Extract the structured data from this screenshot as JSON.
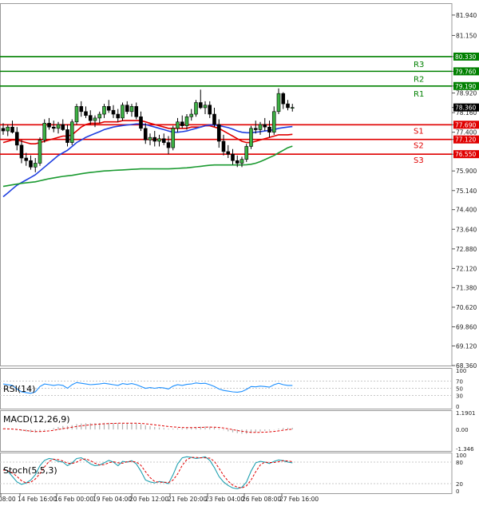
{
  "chart_data": {
    "type": "candlestick",
    "price_axis": {
      "ticks": [
        "81.940",
        "81.150",
        "80.330",
        "79.760",
        "79.190",
        "78.920",
        "78.360",
        "78.160",
        "77.690",
        "77.400",
        "77.120",
        "76.550",
        "75.900",
        "75.140",
        "74.400",
        "73.640",
        "72.880",
        "72.120",
        "71.380",
        "70.620",
        "69.860",
        "69.120",
        "68.360"
      ],
      "range": [
        68.36,
        82.4
      ]
    },
    "time_axis": {
      "labels": [
        "08:00",
        "14 Feb 16:00",
        "16 Feb 00:00",
        "19 Feb 04:00",
        "20 Feb 12:00",
        "21 Feb 20:00",
        "23 Feb 04:00",
        "26 Feb 08:00",
        "27 Feb 16:00"
      ]
    },
    "last_price": "78.360",
    "levels": [
      {
        "name": "R3",
        "label": "R3",
        "value": 80.33,
        "tag": "80.330",
        "color": "#008000"
      },
      {
        "name": "R2",
        "label": "R2",
        "value": 79.76,
        "tag": "79.760",
        "color": "#008000"
      },
      {
        "name": "R1",
        "label": "R1",
        "value": 79.19,
        "tag": "79.190",
        "color": "#008000"
      },
      {
        "name": "S1",
        "label": "S1",
        "value": 77.69,
        "tag": "77.690",
        "color": "#e00000"
      },
      {
        "name": "S2",
        "label": "S2",
        "value": 77.12,
        "tag": "77.120",
        "color": "#e00000"
      },
      {
        "name": "S3",
        "label": "S3",
        "value": 76.55,
        "tag": "76.550",
        "color": "#e00000"
      }
    ],
    "candles": [
      {
        "o": 77.55,
        "h": 77.75,
        "l": 77.3,
        "c": 77.45
      },
      {
        "o": 77.45,
        "h": 77.7,
        "l": 77.25,
        "c": 77.6
      },
      {
        "o": 77.6,
        "h": 77.85,
        "l": 77.35,
        "c": 77.4
      },
      {
        "o": 77.4,
        "h": 77.6,
        "l": 76.7,
        "c": 76.9
      },
      {
        "o": 76.9,
        "h": 77.1,
        "l": 76.2,
        "c": 76.4
      },
      {
        "o": 76.4,
        "h": 76.6,
        "l": 76.1,
        "c": 76.3
      },
      {
        "o": 76.3,
        "h": 76.5,
        "l": 75.95,
        "c": 76.05
      },
      {
        "o": 76.05,
        "h": 76.4,
        "l": 75.85,
        "c": 76.2
      },
      {
        "o": 76.2,
        "h": 77.2,
        "l": 76.1,
        "c": 77.1
      },
      {
        "o": 77.1,
        "h": 77.9,
        "l": 77.0,
        "c": 77.75
      },
      {
        "o": 77.75,
        "h": 77.95,
        "l": 77.5,
        "c": 77.6
      },
      {
        "o": 77.6,
        "h": 77.85,
        "l": 77.4,
        "c": 77.55
      },
      {
        "o": 77.55,
        "h": 77.8,
        "l": 77.35,
        "c": 77.7
      },
      {
        "o": 77.7,
        "h": 77.9,
        "l": 77.45,
        "c": 77.5
      },
      {
        "o": 77.5,
        "h": 77.7,
        "l": 76.85,
        "c": 77.0
      },
      {
        "o": 77.0,
        "h": 77.9,
        "l": 76.9,
        "c": 77.8
      },
      {
        "o": 77.8,
        "h": 78.5,
        "l": 77.7,
        "c": 78.4
      },
      {
        "o": 78.4,
        "h": 78.6,
        "l": 78.0,
        "c": 78.2
      },
      {
        "o": 78.2,
        "h": 78.4,
        "l": 77.95,
        "c": 78.05
      },
      {
        "o": 78.05,
        "h": 78.25,
        "l": 77.7,
        "c": 77.85
      },
      {
        "o": 77.85,
        "h": 78.05,
        "l": 77.6,
        "c": 77.95
      },
      {
        "o": 77.95,
        "h": 78.2,
        "l": 77.75,
        "c": 78.1
      },
      {
        "o": 78.1,
        "h": 78.5,
        "l": 77.95,
        "c": 78.4
      },
      {
        "o": 78.4,
        "h": 78.65,
        "l": 78.15,
        "c": 78.25
      },
      {
        "o": 78.25,
        "h": 78.45,
        "l": 77.95,
        "c": 78.1
      },
      {
        "o": 78.1,
        "h": 78.3,
        "l": 77.8,
        "c": 77.95
      },
      {
        "o": 77.95,
        "h": 78.55,
        "l": 77.85,
        "c": 78.45
      },
      {
        "o": 78.45,
        "h": 78.6,
        "l": 78.1,
        "c": 78.2
      },
      {
        "o": 78.2,
        "h": 78.5,
        "l": 78.0,
        "c": 78.4
      },
      {
        "o": 78.4,
        "h": 78.55,
        "l": 77.9,
        "c": 78.0
      },
      {
        "o": 78.0,
        "h": 78.2,
        "l": 77.45,
        "c": 77.55
      },
      {
        "o": 77.55,
        "h": 77.75,
        "l": 76.95,
        "c": 77.1
      },
      {
        "o": 77.1,
        "h": 77.35,
        "l": 76.9,
        "c": 77.2
      },
      {
        "o": 77.2,
        "h": 77.45,
        "l": 76.85,
        "c": 77.05
      },
      {
        "o": 77.05,
        "h": 77.3,
        "l": 76.85,
        "c": 77.15
      },
      {
        "o": 77.15,
        "h": 77.35,
        "l": 76.9,
        "c": 77.0
      },
      {
        "o": 77.0,
        "h": 77.25,
        "l": 76.55,
        "c": 76.8
      },
      {
        "o": 76.8,
        "h": 77.65,
        "l": 76.7,
        "c": 77.55
      },
      {
        "o": 77.55,
        "h": 77.95,
        "l": 77.4,
        "c": 77.8
      },
      {
        "o": 77.8,
        "h": 78.05,
        "l": 77.55,
        "c": 77.65
      },
      {
        "o": 77.65,
        "h": 78.1,
        "l": 77.5,
        "c": 78.0
      },
      {
        "o": 78.0,
        "h": 78.3,
        "l": 77.85,
        "c": 78.1
      },
      {
        "o": 78.1,
        "h": 78.65,
        "l": 78.0,
        "c": 78.55
      },
      {
        "o": 78.55,
        "h": 79.05,
        "l": 78.3,
        "c": 78.35
      },
      {
        "o": 78.35,
        "h": 78.6,
        "l": 78.1,
        "c": 78.45
      },
      {
        "o": 78.45,
        "h": 78.6,
        "l": 77.95,
        "c": 78.1
      },
      {
        "o": 78.1,
        "h": 78.35,
        "l": 77.6,
        "c": 77.7
      },
      {
        "o": 77.7,
        "h": 77.9,
        "l": 76.8,
        "c": 77.05
      },
      {
        "o": 77.05,
        "h": 77.3,
        "l": 76.5,
        "c": 76.65
      },
      {
        "o": 76.65,
        "h": 76.9,
        "l": 76.4,
        "c": 76.55
      },
      {
        "o": 76.55,
        "h": 76.75,
        "l": 76.15,
        "c": 76.3
      },
      {
        "o": 76.3,
        "h": 76.5,
        "l": 76.05,
        "c": 76.2
      },
      {
        "o": 76.2,
        "h": 76.45,
        "l": 76.05,
        "c": 76.35
      },
      {
        "o": 76.35,
        "h": 76.95,
        "l": 76.25,
        "c": 76.85
      },
      {
        "o": 76.85,
        "h": 77.65,
        "l": 76.75,
        "c": 77.55
      },
      {
        "o": 77.55,
        "h": 77.85,
        "l": 77.35,
        "c": 77.5
      },
      {
        "o": 77.5,
        "h": 77.8,
        "l": 77.3,
        "c": 77.7
      },
      {
        "o": 77.7,
        "h": 77.95,
        "l": 77.45,
        "c": 77.6
      },
      {
        "o": 77.6,
        "h": 77.85,
        "l": 77.2,
        "c": 77.4
      },
      {
        "o": 77.4,
        "h": 78.4,
        "l": 77.3,
        "c": 78.2
      },
      {
        "o": 78.2,
        "h": 79.1,
        "l": 78.1,
        "c": 78.9
      },
      {
        "o": 78.9,
        "h": 78.95,
        "l": 78.3,
        "c": 78.5
      },
      {
        "o": 78.5,
        "h": 78.65,
        "l": 78.25,
        "c": 78.35
      },
      {
        "o": 78.35,
        "h": 78.5,
        "l": 78.2,
        "c": 78.36
      }
    ],
    "moving_averages": [
      {
        "color": "#e00000",
        "values": [
          77.0,
          77.05,
          77.1,
          77.1,
          77.05,
          77.0,
          76.95,
          76.95,
          77.0,
          77.05,
          77.1,
          77.15,
          77.2,
          77.25,
          77.25,
          77.3,
          77.45,
          77.6,
          77.7,
          77.75,
          77.75,
          77.75,
          77.8,
          77.8,
          77.8,
          77.8,
          77.85,
          77.85,
          77.85,
          77.85,
          77.85,
          77.8,
          77.75,
          77.7,
          77.65,
          77.6,
          77.55,
          77.55,
          77.55,
          77.55,
          77.55,
          77.6,
          77.6,
          77.6,
          77.65,
          77.65,
          77.6,
          77.55,
          77.45,
          77.35,
          77.25,
          77.15,
          77.05,
          77.0,
          77.0,
          77.05,
          77.1,
          77.15,
          77.2,
          77.25,
          77.3,
          77.3,
          77.3,
          77.32
        ]
      },
      {
        "color": "#2040e0",
        "values": [
          74.9,
          75.05,
          75.2,
          75.35,
          75.45,
          75.55,
          75.65,
          75.75,
          75.9,
          76.05,
          76.2,
          76.35,
          76.5,
          76.6,
          76.7,
          76.85,
          77.0,
          77.1,
          77.2,
          77.28,
          77.35,
          77.42,
          77.5,
          77.55,
          77.6,
          77.63,
          77.66,
          77.68,
          77.7,
          77.72,
          77.72,
          77.7,
          77.65,
          77.6,
          77.55,
          77.5,
          77.45,
          77.4,
          77.4,
          77.42,
          77.45,
          77.5,
          77.55,
          77.6,
          77.65,
          77.68,
          77.68,
          77.66,
          77.62,
          77.58,
          77.52,
          77.45,
          77.4,
          77.38,
          77.38,
          77.4,
          77.42,
          77.45,
          77.47,
          77.5,
          77.55,
          77.58,
          77.6,
          77.62
        ]
      },
      {
        "color": "#1a9a30",
        "values": [
          75.3,
          75.33,
          75.36,
          75.39,
          75.42,
          75.44,
          75.46,
          75.48,
          75.52,
          75.56,
          75.6,
          75.63,
          75.66,
          75.69,
          75.71,
          75.73,
          75.76,
          75.79,
          75.82,
          75.84,
          75.86,
          75.88,
          75.9,
          75.91,
          75.92,
          75.93,
          75.94,
          75.95,
          75.96,
          75.97,
          75.98,
          75.98,
          75.98,
          75.98,
          75.98,
          75.98,
          75.98,
          75.99,
          76.0,
          76.01,
          76.02,
          76.04,
          76.06,
          76.08,
          76.1,
          76.12,
          76.13,
          76.13,
          76.13,
          76.13,
          76.13,
          76.13,
          76.13,
          76.14,
          76.16,
          76.2,
          76.26,
          76.34,
          76.42,
          76.5,
          76.6,
          76.7,
          76.8,
          76.86
        ]
      }
    ],
    "indicators": {
      "rsi": {
        "label": "RSI(14)",
        "ticks": [
          "100",
          "70",
          "50",
          "30",
          "0"
        ],
        "values": [
          62,
          60,
          58,
          48,
          40,
          38,
          36,
          40,
          55,
          62,
          60,
          58,
          60,
          58,
          50,
          60,
          66,
          64,
          62,
          60,
          61,
          62,
          64,
          62,
          60,
          58,
          63,
          61,
          63,
          60,
          55,
          50,
          52,
          50,
          52,
          51,
          48,
          56,
          60,
          58,
          61,
          62,
          65,
          63,
          64,
          60,
          55,
          48,
          44,
          42,
          40,
          39,
          41,
          47,
          55,
          54,
          56,
          55,
          53,
          60,
          64,
          60,
          58,
          58
        ]
      },
      "macd": {
        "label": "MACD(12,26,9)",
        "ticks": [
          "1.1901",
          "0.00",
          "-1.346"
        ],
        "hist": [
          0.05,
          0.02,
          0.0,
          -0.05,
          -0.1,
          -0.15,
          -0.2,
          -0.22,
          -0.15,
          -0.08,
          0.02,
          0.1,
          0.18,
          0.25,
          0.25,
          0.3,
          0.38,
          0.42,
          0.44,
          0.44,
          0.44,
          0.45,
          0.47,
          0.47,
          0.46,
          0.45,
          0.46,
          0.45,
          0.45,
          0.43,
          0.38,
          0.3,
          0.24,
          0.18,
          0.14,
          0.1,
          0.05,
          0.06,
          0.08,
          0.09,
          0.11,
          0.13,
          0.18,
          0.2,
          0.22,
          0.2,
          0.14,
          0.05,
          -0.05,
          -0.13,
          -0.2,
          -0.26,
          -0.3,
          -0.3,
          -0.25,
          -0.2,
          -0.15,
          -0.1,
          -0.08,
          -0.02,
          0.06,
          0.1,
          0.12,
          0.12
        ],
        "signal": [
          0.05,
          0.04,
          0.03,
          0.0,
          -0.04,
          -0.08,
          -0.12,
          -0.15,
          -0.15,
          -0.13,
          -0.1,
          -0.06,
          0.0,
          0.06,
          0.11,
          0.16,
          0.21,
          0.26,
          0.3,
          0.33,
          0.36,
          0.38,
          0.4,
          0.42,
          0.43,
          0.44,
          0.44,
          0.44,
          0.44,
          0.44,
          0.43,
          0.4,
          0.37,
          0.33,
          0.29,
          0.25,
          0.21,
          0.18,
          0.16,
          0.14,
          0.13,
          0.13,
          0.14,
          0.15,
          0.16,
          0.17,
          0.16,
          0.14,
          0.1,
          0.05,
          -0.01,
          -0.07,
          -0.13,
          -0.17,
          -0.2,
          -0.21,
          -0.2,
          -0.19,
          -0.17,
          -0.14,
          -0.1,
          -0.05,
          -0.01,
          0.02
        ]
      },
      "stoch": {
        "label": "Stoch(5,5,3)",
        "ticks": [
          "100",
          "80",
          "20",
          "0"
        ],
        "k": [
          60,
          55,
          40,
          25,
          18,
          22,
          30,
          45,
          70,
          85,
          90,
          88,
          82,
          80,
          70,
          78,
          90,
          92,
          85,
          75,
          70,
          72,
          78,
          85,
          80,
          70,
          82,
          80,
          84,
          75,
          55,
          30,
          25,
          22,
          26,
          24,
          20,
          45,
          75,
          92,
          95,
          93,
          90,
          92,
          95,
          85,
          65,
          40,
          25,
          15,
          8,
          6,
          10,
          25,
          55,
          78,
          82,
          80,
          76,
          82,
          86,
          84,
          80,
          78
        ],
        "d": [
          58,
          56,
          50,
          40,
          28,
          22,
          24,
          33,
          48,
          67,
          82,
          88,
          87,
          83,
          77,
          76,
          80,
          87,
          89,
          84,
          77,
          72,
          73,
          78,
          81,
          78,
          77,
          81,
          82,
          80,
          71,
          53,
          37,
          26,
          24,
          24,
          23,
          30,
          47,
          71,
          87,
          93,
          93,
          92,
          92,
          91,
          82,
          63,
          43,
          27,
          16,
          10,
          8,
          14,
          30,
          53,
          72,
          80,
          79,
          79,
          81,
          84,
          83,
          81
        ]
      }
    }
  }
}
